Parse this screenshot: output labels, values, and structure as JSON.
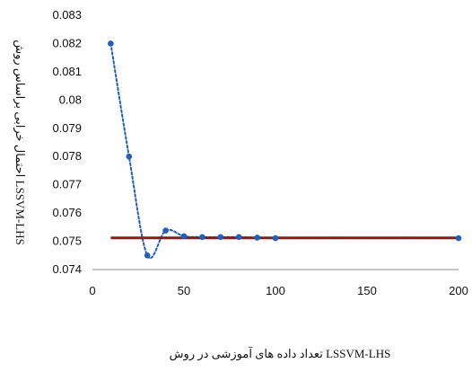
{
  "chart_data": {
    "type": "line",
    "title": "",
    "xlabel": "تعداد داده های آموزشی در روش LSSVM-LHS",
    "ylabel": "احتمال خرابی براساس روش LSSVM-LHS",
    "xlim": [
      0,
      200
    ],
    "ylim": [
      0.074,
      0.083
    ],
    "x_ticks": [
      "0",
      "50",
      "100",
      "150",
      "200"
    ],
    "y_ticks": [
      "0.074",
      "0.075",
      "0.076",
      "0.077",
      "0.078",
      "0.079",
      "0.08",
      "0.081",
      "0.082",
      "0.083"
    ],
    "grid": false,
    "legend": "none",
    "series": [
      {
        "style": "dotted-smooth-with-markers",
        "color": "#1f5fbf",
        "points": [
          {
            "x": 10,
            "y": 0.082
          },
          {
            "x": 20,
            "y": 0.078
          },
          {
            "x": 30,
            "y": 0.0745
          },
          {
            "x": 40,
            "y": 0.07538
          },
          {
            "x": 50,
            "y": 0.07518
          },
          {
            "x": 60,
            "y": 0.07515
          },
          {
            "x": 70,
            "y": 0.07515
          },
          {
            "x": 80,
            "y": 0.07515
          },
          {
            "x": 90,
            "y": 0.07513
          },
          {
            "x": 100,
            "y": 0.07511
          },
          {
            "x": 200,
            "y": 0.07511
          }
        ]
      },
      {
        "style": "solid-reference-line",
        "color": "#8b1a1a",
        "points": [
          {
            "x": 10,
            "y": 0.07512
          },
          {
            "x": 200,
            "y": 0.07512
          }
        ]
      }
    ]
  }
}
